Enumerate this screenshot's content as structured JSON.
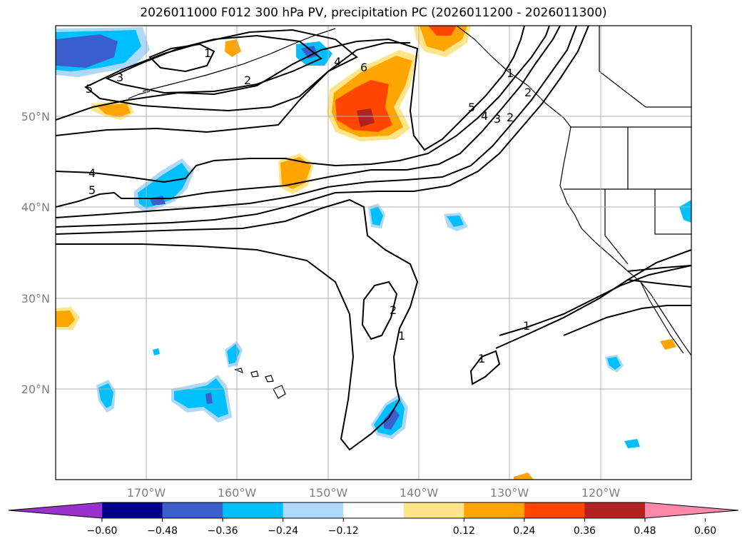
{
  "title": "2026011000 F012 300 hPa PV, precipitation PC (2026011200 - 2026011300)",
  "map": {
    "lat_labels": [
      "50°N",
      "40°N",
      "30°N",
      "20°N"
    ],
    "lon_labels": [
      "170°W",
      "160°W",
      "150°W",
      "140°W",
      "130°W",
      "120°W"
    ],
    "gridlines": true
  },
  "pv_contour_labels": [
    "1",
    "2",
    "3",
    "4",
    "5",
    "6",
    "1",
    "2",
    "4",
    "5",
    "1",
    "2",
    "1",
    "1",
    "5",
    "4",
    "3",
    "2"
  ],
  "colorbar": {
    "ticks": [
      "−0.60",
      "−0.48",
      "−0.36",
      "−0.24",
      "−0.12",
      "0.12",
      "0.24",
      "0.36",
      "0.48",
      "0.60"
    ],
    "colors": [
      "#9932cc",
      "#00008b",
      "#3a5fcd",
      "#00bfff",
      "#add8f7",
      "#ffffff",
      "#ffe58a",
      "#ffa500",
      "#ff4500",
      "#b22222",
      "#ff88aa"
    ]
  }
}
